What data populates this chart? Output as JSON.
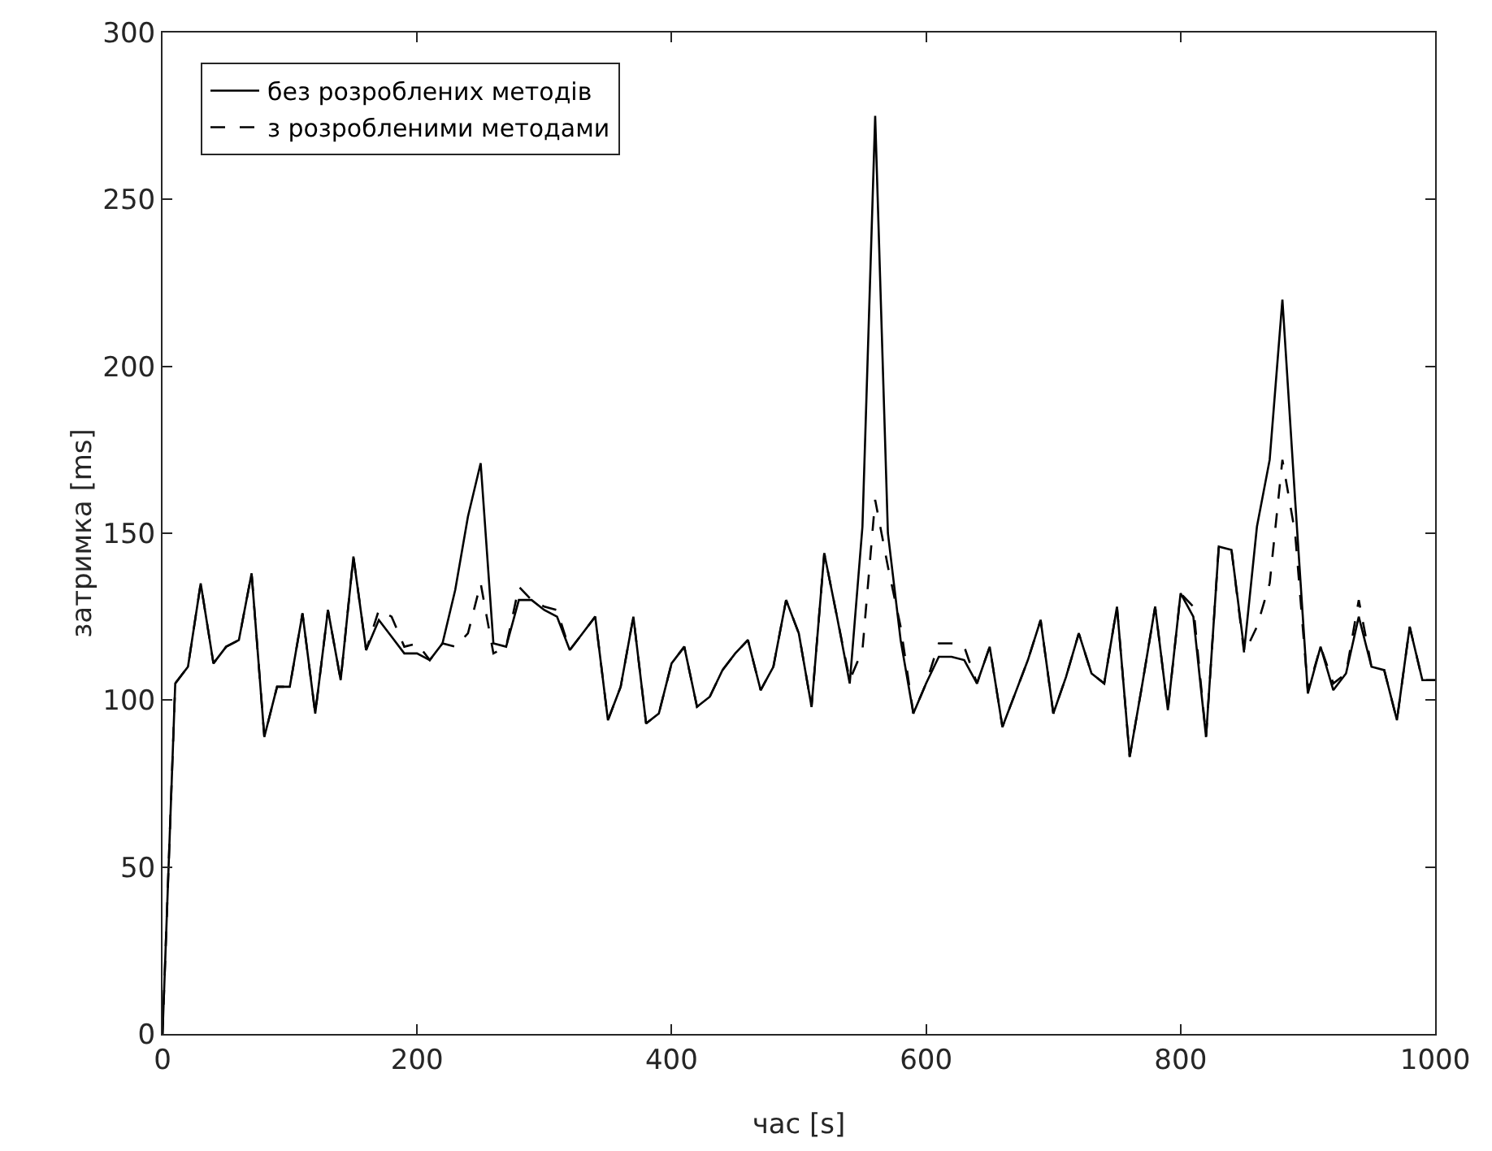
{
  "chart_data": {
    "type": "line",
    "xlabel": "час [s]",
    "ylabel": "затримка [ms]",
    "x": [
      0,
      10,
      20,
      30,
      40,
      50,
      60,
      70,
      80,
      90,
      100,
      110,
      120,
      130,
      140,
      150,
      160,
      170,
      180,
      190,
      200,
      210,
      220,
      230,
      240,
      250,
      260,
      270,
      280,
      290,
      300,
      310,
      320,
      330,
      340,
      350,
      360,
      370,
      380,
      390,
      400,
      410,
      420,
      430,
      440,
      450,
      460,
      470,
      480,
      490,
      500,
      510,
      520,
      530,
      540,
      550,
      560,
      570,
      580,
      590,
      600,
      610,
      620,
      630,
      640,
      650,
      660,
      670,
      680,
      690,
      700,
      710,
      720,
      730,
      740,
      750,
      760,
      770,
      780,
      790,
      800,
      810,
      820,
      830,
      840,
      850,
      860,
      870,
      880,
      890,
      900,
      910,
      920,
      930,
      940,
      950,
      960,
      970,
      980,
      990,
      1000
    ],
    "series": [
      {
        "name": "без розроблених методів",
        "color": "#000000",
        "line_style": "solid",
        "values": [
          0,
          105,
          110,
          135,
          111,
          116,
          118,
          138,
          89,
          104,
          104,
          126,
          96,
          127,
          106,
          143,
          115,
          124,
          119,
          114,
          114,
          112,
          117,
          133,
          155,
          171,
          117,
          116,
          130,
          130,
          127,
          125,
          115,
          120,
          125,
          94,
          104,
          125,
          93,
          96,
          111,
          116,
          98,
          101,
          109,
          114,
          118,
          103,
          110,
          130,
          120,
          98,
          144,
          125,
          105,
          152,
          275,
          150,
          118,
          96,
          105,
          113,
          113,
          112,
          105,
          116,
          92,
          102,
          112,
          124,
          96,
          107,
          120,
          108,
          105,
          128,
          83,
          105,
          128,
          97,
          132,
          125,
          89,
          146,
          145,
          115,
          152,
          172,
          220,
          160,
          102,
          116,
          103,
          108,
          125,
          110,
          109,
          94,
          122,
          106,
          106
        ]
      },
      {
        "name": "з розробленими методами",
        "color": "#000000",
        "line_style": "dashed",
        "values": [
          0,
          105,
          110,
          135,
          111,
          116,
          118,
          138,
          89,
          104,
          104,
          126,
          96,
          127,
          106,
          143,
          115,
          127,
          125,
          116,
          117,
          112,
          117,
          116,
          120,
          135,
          114,
          116,
          134,
          130,
          128,
          127,
          115,
          120,
          125,
          94,
          104,
          125,
          93,
          96,
          111,
          116,
          98,
          101,
          109,
          114,
          118,
          103,
          110,
          130,
          120,
          98,
          144,
          125,
          106,
          115,
          160,
          140,
          122,
          96,
          105,
          117,
          117,
          116,
          105,
          116,
          92,
          102,
          112,
          124,
          96,
          107,
          120,
          108,
          105,
          128,
          83,
          105,
          128,
          97,
          132,
          128,
          89,
          146,
          145,
          114,
          122,
          135,
          172,
          150,
          103,
          116,
          105,
          108,
          130,
          110,
          109,
          94,
          122,
          106,
          106
        ]
      }
    ],
    "xlim": [
      0,
      1000
    ],
    "xticks": [
      0,
      200,
      400,
      600,
      800,
      1000
    ],
    "ylim": [
      0,
      300
    ],
    "yticks": [
      0,
      50,
      100,
      150,
      200,
      250,
      300
    ],
    "grid": false,
    "legend": "top left",
    "marker": "none"
  }
}
